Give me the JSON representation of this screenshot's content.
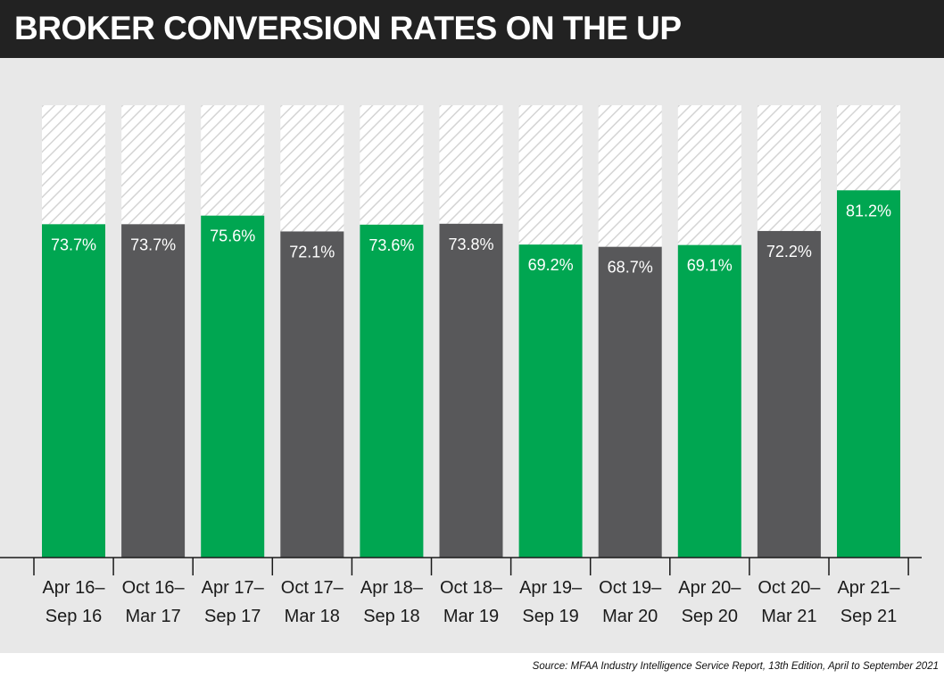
{
  "title": "BROKER CONVERSION RATES ON THE UP",
  "source": "Source: MFAA Industry Intelligence Service Report, 13th Edition, April to September 2021",
  "colors": {
    "title_bg": "#222222",
    "background": "#e8e8e8",
    "green": "#00a651",
    "gray": "#58585a",
    "remainder": "#ffffff",
    "hatch": "#d4d4d4"
  },
  "chart_data": {
    "type": "bar",
    "title": "BROKER CONVERSION RATES ON THE UP",
    "categories": [
      [
        "Apr 16–",
        "Sep 16"
      ],
      [
        "Oct 16–",
        "Mar 17"
      ],
      [
        "Apr 17–",
        "Sep 17"
      ],
      [
        "Oct 17–",
        "Mar 18"
      ],
      [
        "Apr 18–",
        "Sep 18"
      ],
      [
        "Oct 18–",
        "Mar 19"
      ],
      [
        "Apr 19–",
        "Sep 19"
      ],
      [
        "Oct 19–",
        "Mar 20"
      ],
      [
        "Apr 20–",
        "Sep 20"
      ],
      [
        "Oct 20–",
        "Mar 21"
      ],
      [
        "Apr 21–",
        "Sep 21"
      ]
    ],
    "values": [
      73.7,
      73.7,
      75.6,
      72.1,
      73.6,
      73.8,
      69.2,
      68.7,
      69.1,
      72.2,
      81.2
    ],
    "data_labels": [
      "73.7%",
      "73.7%",
      "75.6%",
      "72.1%",
      "73.6%",
      "73.8%",
      "69.2%",
      "68.7%",
      "69.1%",
      "72.2%",
      "81.2%"
    ],
    "bar_colors": [
      "green",
      "gray",
      "green",
      "gray",
      "green",
      "gray",
      "green",
      "gray",
      "green",
      "gray",
      "green"
    ],
    "ylim": [
      0,
      100
    ],
    "grid": false,
    "legend": "none"
  }
}
